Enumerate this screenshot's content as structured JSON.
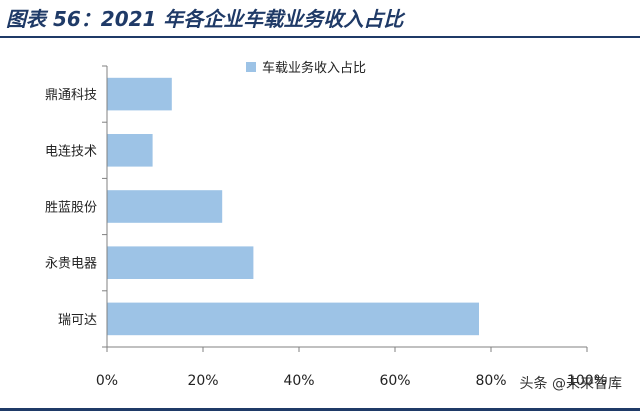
{
  "title": "图表 56：2021 年各企业车载业务收入占比",
  "watermark": "头条 @未来智库",
  "colors": {
    "bar": "#9dc3e6",
    "title": "#1f3a67",
    "axis": "#808080"
  },
  "chart_data": {
    "type": "bar",
    "orientation": "horizontal",
    "categories": [
      "鼎通科技",
      "电连技术",
      "胜蓝股份",
      "永贵电器",
      "瑞可达"
    ],
    "series": [
      {
        "name": "车载业务收入占比",
        "values": [
          13.5,
          9.5,
          24.0,
          30.5,
          77.5
        ]
      }
    ],
    "xlim": [
      0,
      100
    ],
    "ticks": [
      "0%",
      "20%",
      "40%",
      "60%",
      "80%",
      "100%"
    ],
    "grid": false,
    "legend": "top-center"
  }
}
